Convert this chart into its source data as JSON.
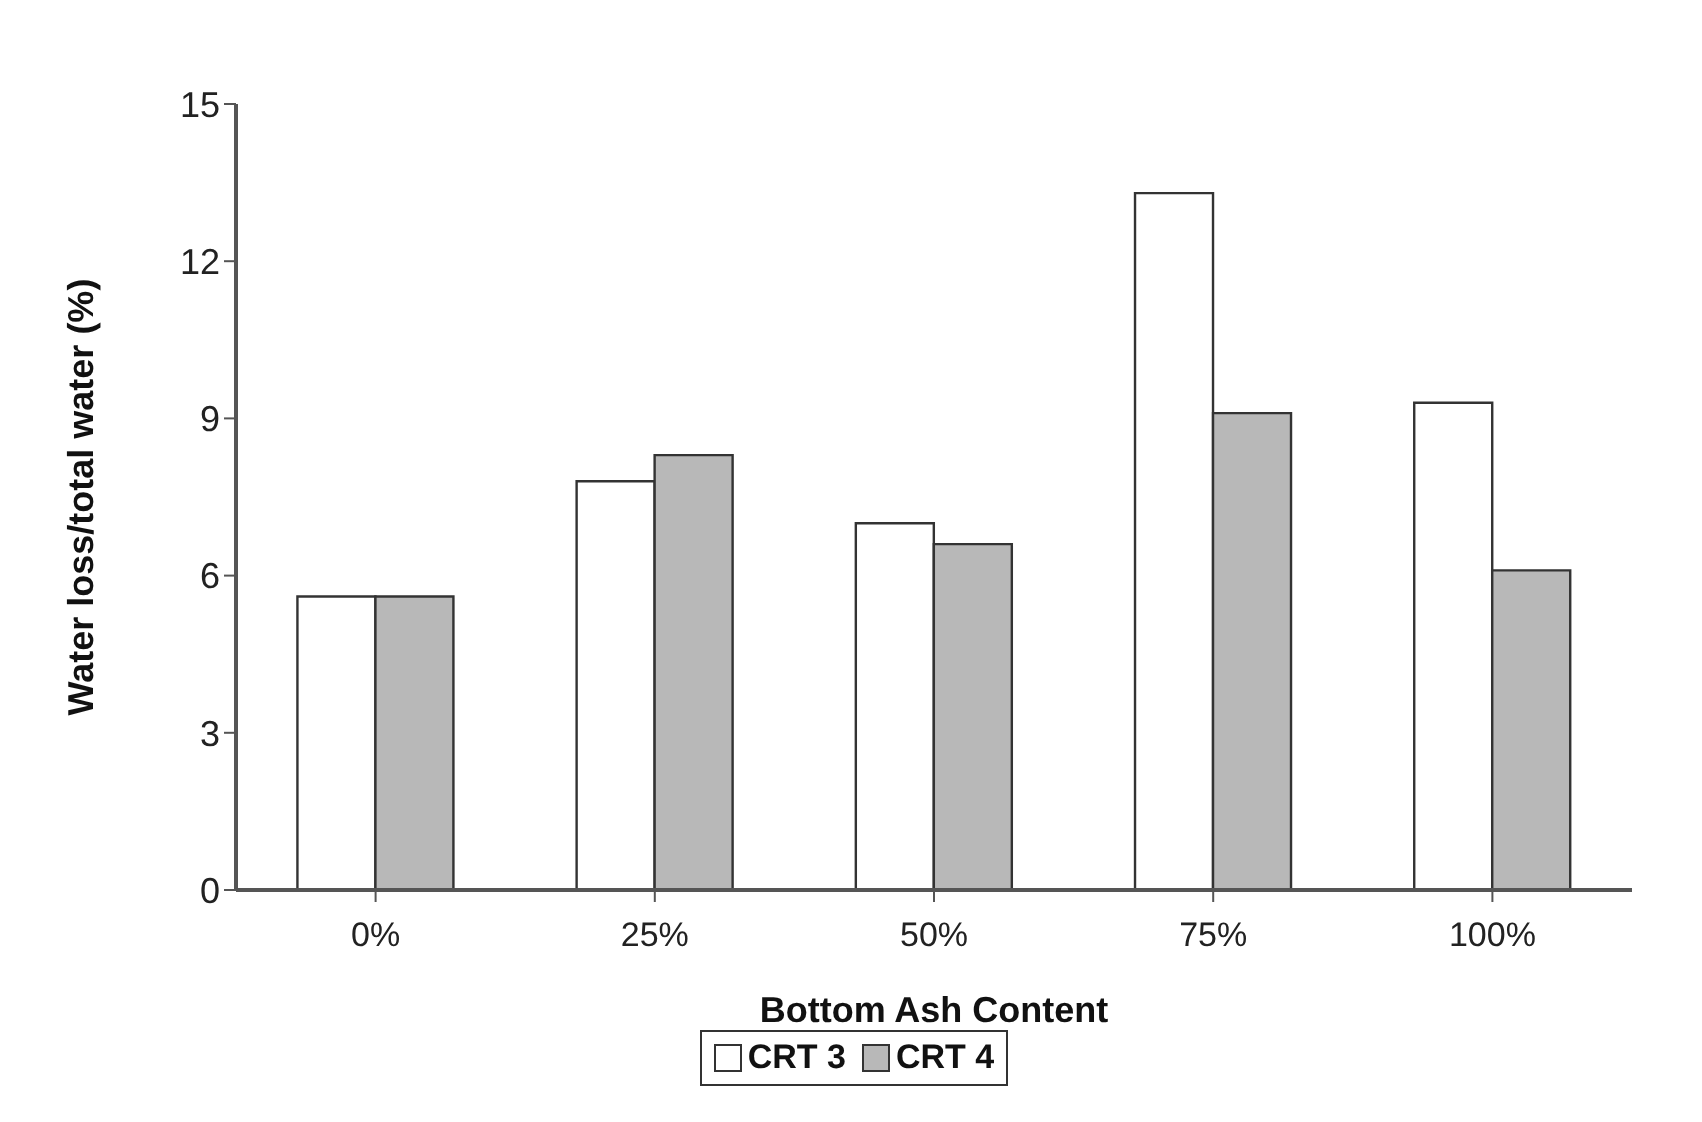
{
  "chart_data": {
    "type": "bar",
    "xlabel": "Bottom Ash Content",
    "ylabel": "Water loss/total water (%)",
    "categories": [
      "0%",
      "25%",
      "50%",
      "75%",
      "100%"
    ],
    "series": [
      {
        "name": "CRT 3",
        "color": "#ffffff",
        "values": [
          5.6,
          7.8,
          7.0,
          13.3,
          9.3
        ]
      },
      {
        "name": "CRT 4",
        "color": "#b8b8b8",
        "values": [
          5.6,
          8.3,
          6.6,
          9.1,
          6.1
        ]
      }
    ],
    "ylim": [
      0,
      15
    ],
    "yticks": [
      0,
      3,
      6,
      9,
      12,
      15
    ],
    "grid": false,
    "legend": "bottom"
  }
}
